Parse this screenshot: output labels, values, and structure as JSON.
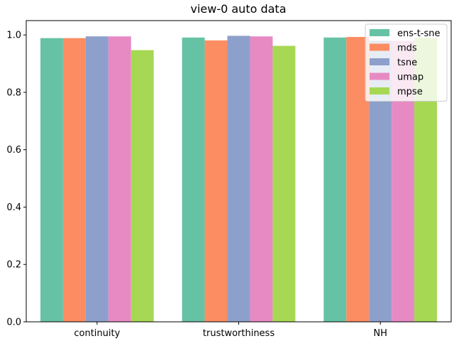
{
  "chart_data": {
    "type": "bar",
    "title": "view-0 auto data",
    "xlabel": "",
    "ylabel": "",
    "categories": [
      "continuity",
      "trustworthiness",
      "NH"
    ],
    "ylim": [
      0,
      1.0
    ],
    "yticks": [
      "0.0",
      "0.2",
      "0.4",
      "0.6",
      "0.8",
      "1.0"
    ],
    "legend_position": "top-right",
    "grid": false,
    "series": [
      {
        "name": "ens-t-sne",
        "color": "#66c2a5",
        "values": [
          0.989,
          0.991,
          0.991
        ]
      },
      {
        "name": "mds",
        "color": "#fc8d62",
        "values": [
          0.989,
          0.981,
          0.993
        ]
      },
      {
        "name": "tsne",
        "color": "#8da0cb",
        "values": [
          0.995,
          0.997,
          0.98
        ]
      },
      {
        "name": "umap",
        "color": "#e78ac3",
        "values": [
          0.995,
          0.995,
          0.98
        ]
      },
      {
        "name": "mpse",
        "color": "#a6d854",
        "values": [
          0.947,
          0.962,
          0.99
        ]
      }
    ]
  }
}
